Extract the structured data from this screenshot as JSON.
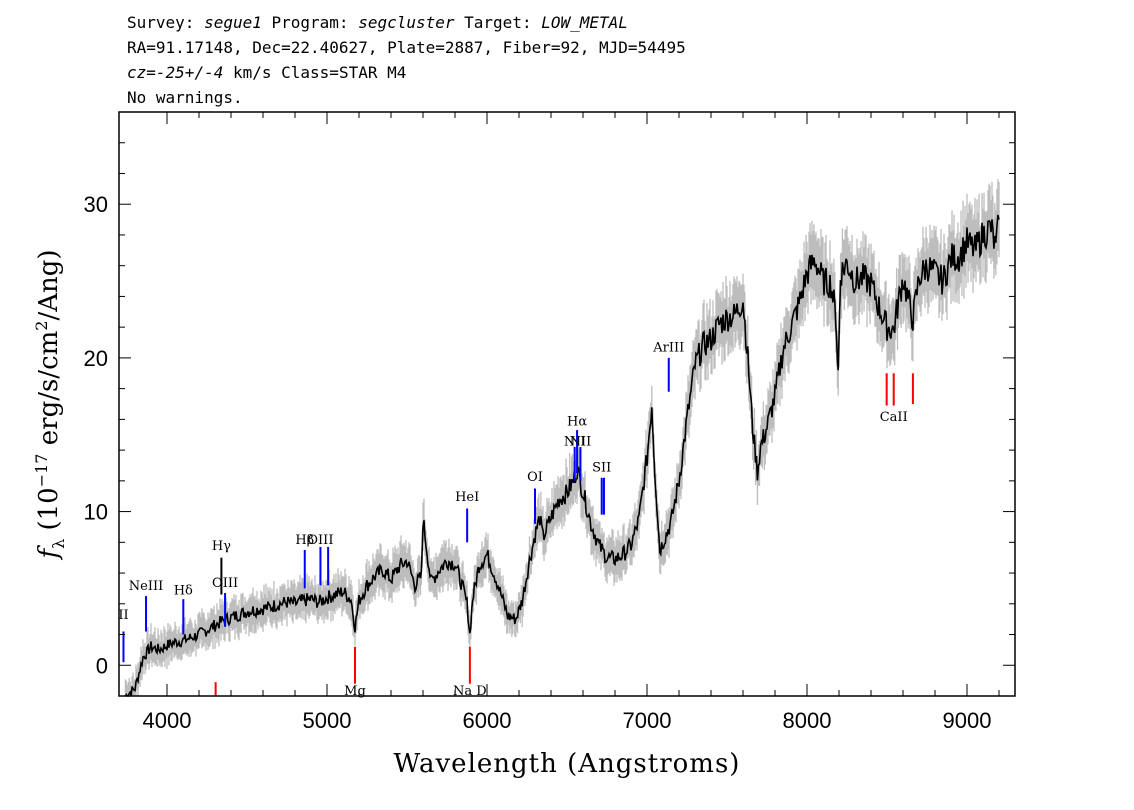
{
  "header": {
    "line1": {
      "survey_label": "Survey: ",
      "survey": "segue1",
      "program_label": " Program: ",
      "program": "segcluster",
      "target_label": " Target: ",
      "target": "LOW_METAL"
    },
    "line2": "RA=91.17148, Dec=22.40627, Plate=2887, Fiber=92, MJD=54495",
    "line3": {
      "cz_label": "cz=",
      "cz_value": "-25+/-4",
      "rest": " km/s Class=STAR M4"
    },
    "line4": "No warnings."
  },
  "chart_data": {
    "type": "line",
    "xlabel": "Wavelength (Angstroms)",
    "ylabel": {
      "f": "f",
      "sub": "λ",
      "pre": " (10",
      "exp1": "−17",
      "mid": " erg/s/cm",
      "exp2": "2",
      "post": "/Ang)"
    },
    "xlim": [
      3700,
      9300
    ],
    "ylim": [
      -2,
      36
    ],
    "x_ticks": [
      4000,
      5000,
      6000,
      7000,
      8000,
      9000
    ],
    "y_ticks": [
      0,
      10,
      20,
      30
    ],
    "colors": {
      "flux": "#000000",
      "error": "#bdbdbd",
      "emission": "#0000ff",
      "absorption": "#ff0000",
      "marker": "#000000"
    },
    "series": [
      {
        "x": [
          3740,
          3800,
          3850,
          3900,
          3950,
          4000,
          4050,
          4100,
          4150,
          4200,
          4250,
          4300,
          4350,
          4400,
          4450,
          4500,
          4550,
          4600,
          4650,
          4700,
          4750,
          4800,
          4850,
          4900,
          4950,
          5000,
          5050,
          5100,
          5150,
          5175,
          5200,
          5250,
          5300,
          5350,
          5400,
          5450,
          5500,
          5550,
          5590,
          5600,
          5650,
          5700,
          5750,
          5800,
          5850,
          5875,
          5893,
          5910,
          5950,
          6000,
          6050,
          6100,
          6130,
          6180,
          6220,
          6260,
          6300,
          6330,
          6350,
          6400,
          6450,
          6500,
          6540,
          6563,
          6600,
          6650,
          6700,
          6750,
          6800,
          6850,
          6900,
          6950,
          7000,
          7030,
          7050,
          7080,
          7150,
          7200,
          7250,
          7300,
          7350,
          7400,
          7450,
          7500,
          7550,
          7600,
          7630,
          7660,
          7690,
          7710,
          7750,
          7800,
          7850,
          7900,
          7950,
          8000,
          8050,
          8100,
          8150,
          8180,
          8195,
          8210,
          8250,
          8300,
          8350,
          8400,
          8450,
          8500,
          8542,
          8560,
          8600,
          8662,
          8700,
          8750,
          8800,
          8850,
          8900,
          8950,
          9000,
          9050,
          9100,
          9150,
          9180,
          9200
        ],
        "values": [
          -2,
          -1.5,
          0.5,
          1.2,
          1.0,
          1.3,
          1.5,
          1.6,
          1.8,
          2.0,
          2.3,
          2.6,
          2.9,
          3.1,
          3.3,
          3.5,
          3.6,
          3.7,
          3.8,
          4.0,
          4.1,
          4.0,
          4.2,
          4.3,
          4.1,
          4.4,
          4.6,
          4.8,
          4.3,
          2.5,
          4.2,
          5.2,
          5.8,
          6.2,
          5.6,
          6.4,
          6.8,
          5.2,
          5.8,
          9.5,
          5.4,
          6.2,
          6.8,
          6.6,
          5.0,
          4.0,
          2.0,
          4.3,
          6.5,
          7.2,
          5.8,
          4.2,
          3.2,
          3.0,
          4.2,
          6.5,
          8.5,
          9.6,
          8.3,
          9.6,
          10.8,
          11.2,
          12.0,
          12.8,
          11.3,
          9.2,
          7.8,
          7.0,
          6.9,
          7.2,
          7.8,
          9.5,
          13.5,
          17.0,
          12.5,
          7.5,
          9.3,
          12.0,
          16.0,
          19.5,
          20.8,
          21.2,
          22.2,
          22.6,
          22.8,
          23.8,
          20.0,
          15.5,
          12.6,
          14.2,
          15.5,
          17.5,
          20.5,
          22.0,
          23.5,
          25.5,
          26.4,
          25.0,
          24.8,
          22.8,
          19.0,
          25.5,
          26.2,
          25.0,
          25.2,
          24.8,
          23.3,
          22.0,
          21.8,
          23.0,
          25.2,
          22.5,
          25.2,
          26.0,
          25.5,
          25.0,
          26.5,
          26.6,
          27.5,
          27.0,
          28.0,
          28.5,
          27.0,
          29.0
        ]
      }
    ],
    "line_markers": [
      {
        "label": "HII",
        "display": "II",
        "x": 3728,
        "color": "blue",
        "y_top": 2.2,
        "y_bottom": 0.2,
        "label_y": 3.0
      },
      {
        "label": "NeIII",
        "x": 3869,
        "color": "blue",
        "y_top": 4.5,
        "y_bottom": 2.2,
        "label_y": 4.9
      },
      {
        "label": "Hδ",
        "x": 4102,
        "color": "blue",
        "y_top": 4.3,
        "y_bottom": 2.0,
        "label_y": 4.6
      },
      {
        "label": "Hγ",
        "x": 4340,
        "color": "black",
        "y_top": 7.0,
        "y_bottom": 4.6,
        "label_y": 7.5
      },
      {
        "label": "OIII",
        "x": 4363,
        "color": "blue",
        "y_top": 4.7,
        "y_bottom": 2.5,
        "label_y": 5.1
      },
      {
        "label": "Hβ",
        "x": 4861,
        "color": "blue",
        "y_top": 7.5,
        "y_bottom": 5.0,
        "label_y": 7.9
      },
      {
        "label": "OIII",
        "x": 4959,
        "color": "blue",
        "y_top": 7.7,
        "y_bottom": 5.2,
        "label_y": 7.9
      },
      {
        "label": "",
        "x": 5007,
        "color": "blue",
        "y_top": 7.7,
        "y_bottom": 5.2
      },
      {
        "label": "HeI",
        "x": 5876,
        "color": "blue",
        "y_top": 10.2,
        "y_bottom": 8.0,
        "label_y": 10.7
      },
      {
        "label": "OI",
        "x": 6300,
        "color": "blue",
        "y_top": 11.5,
        "y_bottom": 9.2,
        "label_y": 12.0
      },
      {
        "label": "NII",
        "x": 6548,
        "color": "blue",
        "y_top": 14.2,
        "y_bottom": 12.0,
        "label_y": 14.3
      },
      {
        "label": "Hα",
        "x": 6563,
        "color": "blue",
        "y_top": 15.3,
        "y_bottom": 12.5,
        "label_y": 15.6
      },
      {
        "label": "NII",
        "x": 6584,
        "color": "blue",
        "y_top": 14.2,
        "y_bottom": 12.0,
        "label_y": 14.3
      },
      {
        "label": "SII",
        "x": 6717,
        "color": "blue",
        "y_top": 12.2,
        "y_bottom": 9.8,
        "label_y": 12.6
      },
      {
        "label": "",
        "x": 6731,
        "color": "blue",
        "y_top": 12.2,
        "y_bottom": 9.8
      },
      {
        "label": "ArIII",
        "x": 7136,
        "color": "blue",
        "y_top": 20.0,
        "y_bottom": 17.8,
        "label_y": 20.4
      },
      {
        "label": "Mg",
        "x": 5175,
        "color": "red",
        "y_top": 1.2,
        "y_bottom": -1.2,
        "label_y": -2.0
      },
      {
        "label": "Na D",
        "x": 5893,
        "color": "red",
        "y_top": 1.2,
        "y_bottom": -1.2,
        "label_y": -2.0
      },
      {
        "label": "",
        "x": 4304,
        "color": "red",
        "y_top": -1.1,
        "y_bottom": -2.0
      },
      {
        "label": "",
        "x": 8498,
        "color": "red",
        "y_top": 19.0,
        "y_bottom": 16.9
      },
      {
        "label": "CaII",
        "x": 8542,
        "color": "red",
        "y_top": 19.0,
        "y_bottom": 16.9,
        "label_y": 15.9
      },
      {
        "label": "",
        "x": 8662,
        "color": "red",
        "y_top": 19.0,
        "y_bottom": 17.0
      }
    ]
  }
}
